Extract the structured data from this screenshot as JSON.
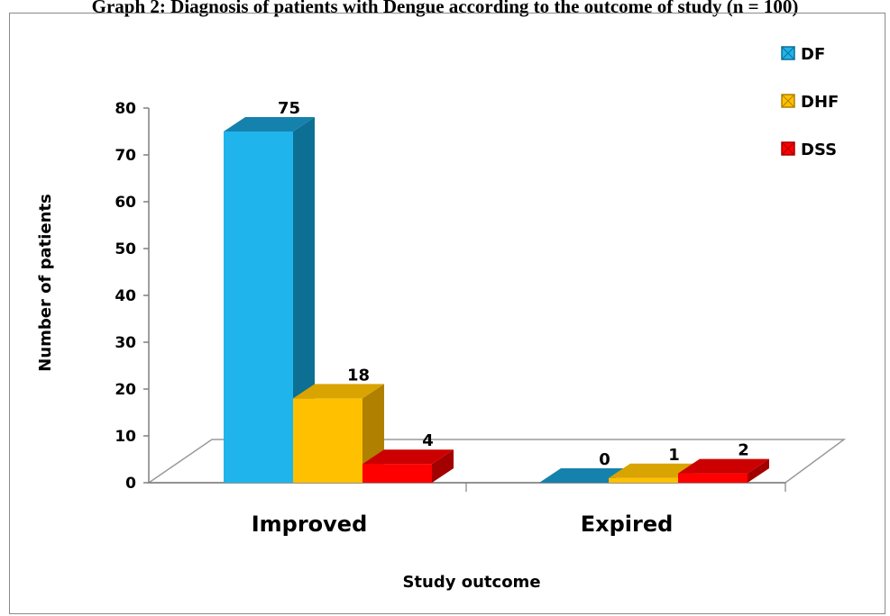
{
  "header": {
    "title": "Graph 2: Diagnosis of patients with Dengue according to the outcome of study (n = 100)"
  },
  "chart_data": {
    "type": "bar",
    "title": "",
    "xlabel": "Study outcome",
    "ylabel": "Number of patients",
    "categories": [
      "Improved",
      "Expired"
    ],
    "series": [
      {
        "name": "DF",
        "values": [
          75,
          0
        ],
        "color": "#1fb4ec",
        "side": "#0d6f94",
        "top": "#1582ae"
      },
      {
        "name": "DHF",
        "values": [
          18,
          1
        ],
        "color": "#ffc000",
        "side": "#b08000",
        "top": "#d9a300"
      },
      {
        "name": "DSS",
        "values": [
          4,
          2
        ],
        "color": "#ff0000",
        "side": "#a30000",
        "top": "#cc0000"
      }
    ],
    "ylim": [
      0,
      80
    ],
    "yticks": [
      0,
      10,
      20,
      30,
      40,
      50,
      60,
      70,
      80
    ],
    "legend_position": "right",
    "style": "3d-clustered-column"
  }
}
